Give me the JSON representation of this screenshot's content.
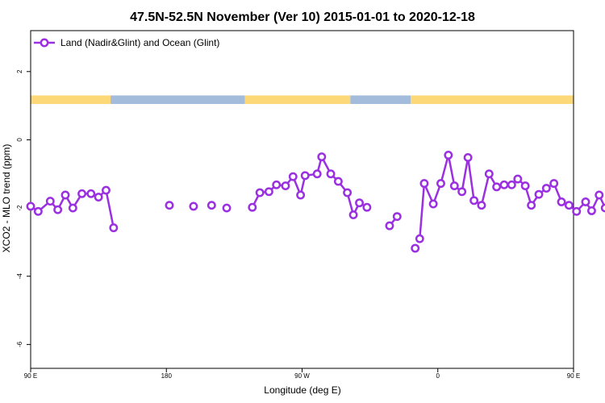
{
  "chart_data": {
    "type": "line",
    "title": "47.5N-52.5N November (Ver 10)   2015-01-01 to 2020-12-18",
    "xlabel": "Longitude (deg E)",
    "ylabel": "XCO2 - MLO trend (ppm)",
    "xlim": [
      90,
      450
    ],
    "ylim": [
      -6.7,
      3.2
    ],
    "x_ticks": [
      {
        "value": 90,
        "label": "90 E"
      },
      {
        "value": 180,
        "label": "180"
      },
      {
        "value": 270,
        "label": "90 W"
      },
      {
        "value": 360,
        "label": "0"
      },
      {
        "value": 450,
        "label": "90 E"
      },
      {
        "value": 540,
        "label": "180"
      }
    ],
    "y_ticks": [
      {
        "value": 2,
        "label": "2"
      },
      {
        "value": 0,
        "label": "0"
      },
      {
        "value": -2,
        "label": "-2"
      },
      {
        "value": -4,
        "label": "-4"
      },
      {
        "value": -6,
        "label": "-6"
      }
    ],
    "legend": {
      "position": "top-left",
      "label": "Land (Nadir&Glint) and Ocean (Glint)"
    },
    "colors": {
      "series": "#9b30e0",
      "land": "#fdd878",
      "ocean": "#a4bcdc"
    },
    "surface_band": {
      "y_range": [
        1.05,
        1.3
      ],
      "segments": [
        {
          "type": "land",
          "x": [
            90,
            143
          ]
        },
        {
          "type": "ocean",
          "x": [
            143,
            232
          ]
        },
        {
          "type": "land",
          "x": [
            232,
            302
          ]
        },
        {
          "type": "ocean",
          "x": [
            302,
            342
          ]
        },
        {
          "type": "land",
          "x": [
            342,
            520
          ]
        },
        {
          "type": "ocean",
          "x": [
            520,
            540
          ]
        }
      ]
    },
    "series": [
      {
        "name": "Land (Nadir&Glint) and Ocean (Glint)",
        "segments": [
          [
            [
              90,
              -1.95
            ],
            [
              95,
              -2.1
            ],
            [
              103,
              -1.8
            ],
            [
              108,
              -2.05
            ],
            [
              113,
              -1.62
            ],
            [
              118,
              -2.0
            ],
            [
              124,
              -1.58
            ],
            [
              130,
              -1.58
            ],
            [
              135,
              -1.68
            ],
            [
              140,
              -1.48
            ],
            [
              145,
              -2.58
            ]
          ],
          [
            [
              182,
              -1.92
            ]
          ],
          [
            [
              198,
              -1.95
            ]
          ],
          [
            [
              210,
              -1.92
            ]
          ],
          [
            [
              220,
              -2.0
            ]
          ],
          [
            [
              237,
              -1.98
            ],
            [
              242,
              -1.55
            ],
            [
              248,
              -1.52
            ],
            [
              253,
              -1.32
            ],
            [
              259,
              -1.35
            ],
            [
              264,
              -1.08
            ],
            [
              269,
              -1.62
            ],
            [
              272,
              -1.05
            ],
            [
              280,
              -1.0
            ],
            [
              283,
              -0.5
            ],
            [
              289,
              -1.0
            ],
            [
              294,
              -1.22
            ],
            [
              300,
              -1.55
            ],
            [
              304,
              -2.2
            ],
            [
              308,
              -1.85
            ],
            [
              313,
              -1.98
            ]
          ],
          [
            [
              328,
              -2.52
            ],
            [
              333,
              -2.25
            ]
          ],
          [
            [
              345,
              -3.18
            ]
          ],
          [
            [
              348,
              -2.9
            ],
            [
              351,
              -1.28
            ],
            [
              357,
              -1.88
            ],
            [
              362,
              -1.28
            ],
            [
              367,
              -0.45
            ],
            [
              371,
              -1.35
            ],
            [
              376,
              -1.52
            ],
            [
              380,
              -0.52
            ],
            [
              384,
              -1.78
            ],
            [
              389,
              -1.92
            ],
            [
              394,
              -1.0
            ],
            [
              399,
              -1.38
            ],
            [
              404,
              -1.32
            ],
            [
              409,
              -1.32
            ],
            [
              413,
              -1.15
            ],
            [
              418,
              -1.35
            ],
            [
              422,
              -1.92
            ],
            [
              427,
              -1.6
            ],
            [
              432,
              -1.42
            ],
            [
              437,
              -1.28
            ],
            [
              442,
              -1.82
            ],
            [
              447,
              -1.92
            ],
            [
              452,
              -2.1
            ],
            [
              458,
              -1.82
            ],
            [
              462,
              -2.08
            ],
            [
              467,
              -1.62
            ],
            [
              471,
              -2.0
            ],
            [
              476,
              -1.58
            ],
            [
              481,
              -1.58
            ],
            [
              485,
              -1.7
            ],
            [
              490,
              -1.48
            ],
            [
              495,
              -2.58
            ]
          ]
        ]
      }
    ]
  }
}
